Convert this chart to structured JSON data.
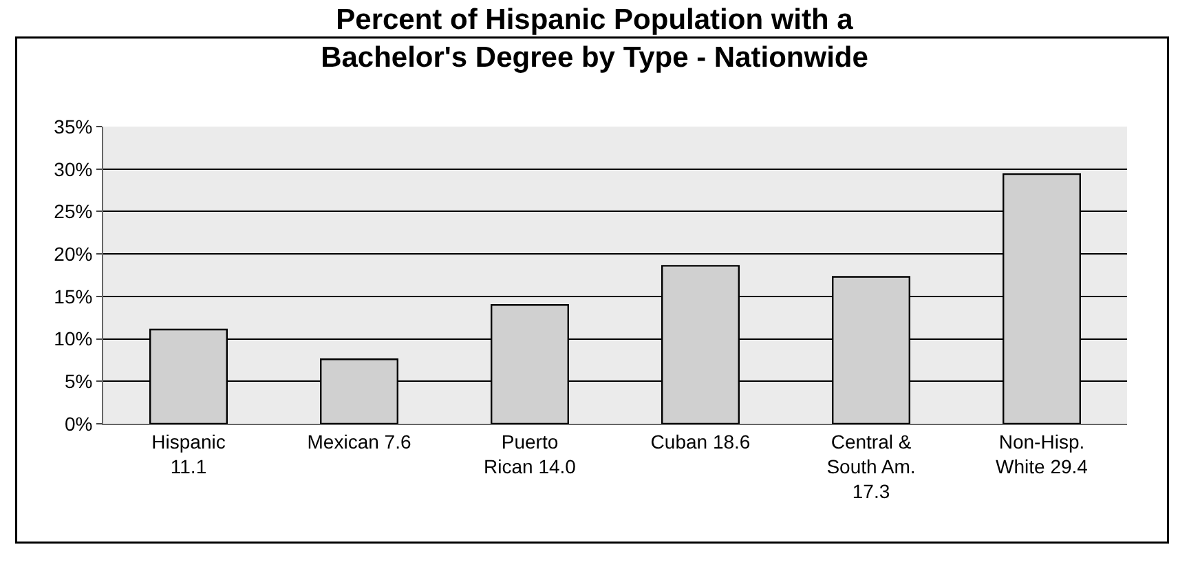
{
  "chart_data": {
    "type": "bar",
    "title": "Percent of Hispanic Population with a Bachelor's Degree by Type - Nationwide",
    "categories": [
      "Hispanic 11.1",
      "Mexican 7.6",
      "Puerto Rican 14.0",
      "Cuban 18.6",
      "Central & South Am. 17.3",
      "Non-Hisp. White 29.4"
    ],
    "values": [
      11.1,
      7.6,
      14.0,
      18.6,
      17.3,
      29.4
    ],
    "color": "#d0d0d0",
    "ylim": [
      0,
      35
    ],
    "yticks": [
      {
        "value": 0,
        "label": "0%"
      },
      {
        "value": 5,
        "label": "5%"
      },
      {
        "value": 10,
        "label": "10%"
      },
      {
        "value": 15,
        "label": "15%"
      },
      {
        "value": 20,
        "label": "20%"
      },
      {
        "value": 25,
        "label": "25%"
      },
      {
        "value": 30,
        "label": "30%"
      },
      {
        "value": 35,
        "label": "35%"
      }
    ],
    "grid": "y"
  }
}
